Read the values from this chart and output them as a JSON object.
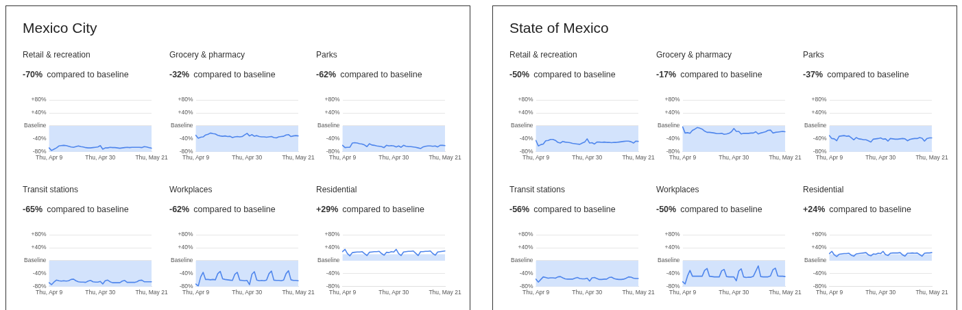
{
  "chart_data": [
    {
      "type": "other",
      "title": "Mexico City"
    },
    {
      "type": "line",
      "title": "Retail & recreation",
      "subtitle": "-70% compared to baseline",
      "categories": [
        "Thu, Apr 9",
        null,
        null,
        null,
        null,
        null,
        null,
        null,
        null,
        null,
        null,
        null,
        null,
        null,
        null,
        null,
        null,
        null,
        null,
        null,
        null,
        "Thu, Apr 30",
        null,
        null,
        null,
        null,
        null,
        null,
        null,
        null,
        null,
        null,
        null,
        null,
        null,
        null,
        null,
        null,
        null,
        null,
        null,
        null,
        "Thu, May 21"
      ],
      "series": [
        {
          "color": "#4f86ec",
          "values": [
            -68,
            -76,
            -72,
            -68,
            -62,
            -61,
            -60,
            -61,
            -63,
            -65,
            -66,
            -64,
            -62,
            -64,
            -65,
            -67,
            -68,
            -68,
            -67,
            -66,
            -65,
            -61,
            -72,
            -68,
            -68,
            -66,
            -67,
            -67,
            -68,
            -69,
            -68,
            -67,
            -66,
            -67,
            -66,
            -66,
            -66,
            -66,
            -67,
            -64,
            -65,
            -67,
            -69
          ]
        }
      ],
      "ylim": [
        -80,
        80
      ],
      "yticks": [
        {
          "value": 80,
          "label": "+80%"
        },
        {
          "value": 40,
          "label": "+40%"
        },
        {
          "value": 0,
          "label": "Baseline"
        },
        {
          "value": -40,
          "label": "-40%"
        },
        {
          "value": -80,
          "label": "-80%"
        }
      ],
      "bands": [
        {
          "axis": "y",
          "from": 0,
          "to": -80,
          "color": "#d3e3fc"
        }
      ],
      "grid": "y",
      "marker": "none",
      "line_style": "solid"
    },
    {
      "type": "line",
      "title": "Grocery & pharmacy",
      "subtitle": "-32% compared to baseline",
      "categories": [
        "Thu, Apr 9",
        null,
        null,
        null,
        null,
        null,
        null,
        null,
        null,
        null,
        null,
        null,
        null,
        null,
        null,
        null,
        null,
        null,
        null,
        null,
        null,
        "Thu, Apr 30",
        null,
        null,
        null,
        null,
        null,
        null,
        null,
        null,
        null,
        null,
        null,
        null,
        null,
        null,
        null,
        null,
        null,
        null,
        null,
        null,
        "Thu, May 21"
      ],
      "series": [
        {
          "color": "#4f86ec",
          "values": [
            -29,
            -38,
            -35,
            -34,
            -28,
            -26,
            -22,
            -24,
            -25,
            -29,
            -31,
            -32,
            -31,
            -33,
            -32,
            -36,
            -34,
            -33,
            -34,
            -33,
            -28,
            -23,
            -31,
            -27,
            -32,
            -30,
            -33,
            -34,
            -34,
            -35,
            -34,
            -33,
            -36,
            -37,
            -34,
            -33,
            -32,
            -28,
            -27,
            -33,
            -31,
            -30,
            -31
          ]
        }
      ],
      "ylim": [
        -80,
        80
      ],
      "yticks": [
        {
          "value": 80,
          "label": "+80%"
        },
        {
          "value": 40,
          "label": "+40%"
        },
        {
          "value": 0,
          "label": "Baseline"
        },
        {
          "value": -40,
          "label": "-40%"
        },
        {
          "value": -80,
          "label": "-80%"
        }
      ],
      "bands": [
        {
          "axis": "y",
          "from": 0,
          "to": -80,
          "color": "#d3e3fc"
        }
      ],
      "grid": "y",
      "marker": "none",
      "line_style": "solid"
    },
    {
      "type": "line",
      "title": "Parks",
      "subtitle": "-62% compared to baseline",
      "categories": [
        "Thu, Apr 9",
        null,
        null,
        null,
        null,
        null,
        null,
        null,
        null,
        null,
        null,
        null,
        null,
        null,
        null,
        null,
        null,
        null,
        null,
        null,
        null,
        "Thu, Apr 30",
        null,
        null,
        null,
        null,
        null,
        null,
        null,
        null,
        null,
        null,
        null,
        null,
        null,
        null,
        null,
        null,
        null,
        null,
        null,
        null,
        "Thu, May 21"
      ],
      "series": [
        {
          "color": "#4f86ec",
          "values": [
            -60,
            -67,
            -66,
            -66,
            -53,
            -52,
            -53,
            -55,
            -56,
            -59,
            -64,
            -55,
            -59,
            -60,
            -62,
            -63,
            -64,
            -67,
            -60,
            -62,
            -61,
            -62,
            -65,
            -62,
            -66,
            -60,
            -63,
            -64,
            -64,
            -65,
            -66,
            -68,
            -70,
            -65,
            -63,
            -62,
            -62,
            -63,
            -62,
            -65,
            -60,
            -60,
            -61
          ]
        }
      ],
      "ylim": [
        -80,
        80
      ],
      "yticks": [
        {
          "value": 80,
          "label": "+80%"
        },
        {
          "value": 40,
          "label": "+40%"
        },
        {
          "value": 0,
          "label": "Baseline"
        },
        {
          "value": -40,
          "label": "-40%"
        },
        {
          "value": -80,
          "label": "-80%"
        }
      ],
      "bands": [
        {
          "axis": "y",
          "from": 0,
          "to": -80,
          "color": "#d3e3fc"
        }
      ],
      "grid": "y",
      "marker": "none",
      "line_style": "solid"
    },
    {
      "type": "line",
      "title": "Transit stations",
      "subtitle": "-65% compared to baseline",
      "categories": [
        "Thu, Apr 9",
        null,
        null,
        null,
        null,
        null,
        null,
        null,
        null,
        null,
        null,
        null,
        null,
        null,
        null,
        null,
        null,
        null,
        null,
        null,
        null,
        "Thu, Apr 30",
        null,
        null,
        null,
        null,
        null,
        null,
        null,
        null,
        null,
        null,
        null,
        null,
        null,
        null,
        null,
        null,
        null,
        null,
        null,
        null,
        "Thu, May 21"
      ],
      "series": [
        {
          "color": "#4f86ec",
          "values": [
            -68,
            -74,
            -66,
            -60,
            -62,
            -63,
            -62,
            -63,
            -62,
            -58,
            -57,
            -62,
            -65,
            -66,
            -66,
            -67,
            -63,
            -61,
            -65,
            -66,
            -66,
            -64,
            -72,
            -62,
            -60,
            -65,
            -68,
            -68,
            -68,
            -68,
            -63,
            -61,
            -67,
            -67,
            -67,
            -67,
            -65,
            -61,
            -60,
            -65,
            -65,
            -65,
            -65
          ]
        }
      ],
      "ylim": [
        -80,
        80
      ],
      "yticks": [
        {
          "value": 80,
          "label": "+80%"
        },
        {
          "value": 40,
          "label": "+40%"
        },
        {
          "value": 0,
          "label": "Baseline"
        },
        {
          "value": -40,
          "label": "-40%"
        },
        {
          "value": -80,
          "label": "-80%"
        }
      ],
      "bands": [
        {
          "axis": "y",
          "from": 0,
          "to": -80,
          "color": "#d3e3fc"
        }
      ],
      "grid": "y",
      "marker": "none",
      "line_style": "solid"
    },
    {
      "type": "line",
      "title": "Workplaces",
      "subtitle": "-62% compared to baseline",
      "categories": [
        "Thu, Apr 9",
        null,
        null,
        null,
        null,
        null,
        null,
        null,
        null,
        null,
        null,
        null,
        null,
        null,
        null,
        null,
        null,
        null,
        null,
        null,
        null,
        "Thu, Apr 30",
        null,
        null,
        null,
        null,
        null,
        null,
        null,
        null,
        null,
        null,
        null,
        null,
        null,
        null,
        null,
        null,
        null,
        null,
        null,
        null,
        "Thu, May 21"
      ],
      "series": [
        {
          "color": "#4f86ec",
          "values": [
            -72,
            -78,
            -50,
            -36,
            -58,
            -58,
            -59,
            -58,
            -59,
            -40,
            -33,
            -56,
            -58,
            -59,
            -60,
            -61,
            -42,
            -36,
            -60,
            -61,
            -62,
            -61,
            -74,
            -42,
            -34,
            -60,
            -62,
            -61,
            -62,
            -60,
            -40,
            -32,
            -60,
            -61,
            -61,
            -62,
            -60,
            -40,
            -31,
            -59,
            -61,
            -61,
            -62
          ]
        }
      ],
      "ylim": [
        -80,
        80
      ],
      "yticks": [
        {
          "value": 80,
          "label": "+80%"
        },
        {
          "value": 40,
          "label": "+40%"
        },
        {
          "value": 0,
          "label": "Baseline"
        },
        {
          "value": -40,
          "label": "-40%"
        },
        {
          "value": -80,
          "label": "-80%"
        }
      ],
      "bands": [
        {
          "axis": "y",
          "from": 0,
          "to": -80,
          "color": "#d3e3fc"
        }
      ],
      "grid": "y",
      "marker": "none",
      "line_style": "solid"
    },
    {
      "type": "line",
      "title": "Residential",
      "subtitle": "+29% compared to baseline",
      "categories": [
        "Thu, Apr 9",
        null,
        null,
        null,
        null,
        null,
        null,
        null,
        null,
        null,
        null,
        null,
        null,
        null,
        null,
        null,
        null,
        null,
        null,
        null,
        null,
        "Thu, Apr 30",
        null,
        null,
        null,
        null,
        null,
        null,
        null,
        null,
        null,
        null,
        null,
        null,
        null,
        null,
        null,
        null,
        null,
        null,
        null,
        null,
        "Thu, May 21"
      ],
      "series": [
        {
          "color": "#4f86ec",
          "values": [
            28,
            35,
            22,
            15,
            25,
            26,
            27,
            27,
            28,
            22,
            16,
            26,
            27,
            28,
            28,
            29,
            22,
            17,
            26,
            25,
            28,
            27,
            35,
            22,
            16,
            27,
            28,
            29,
            29,
            30,
            23,
            16,
            28,
            28,
            29,
            29,
            30,
            22,
            17,
            27,
            28,
            29,
            30
          ]
        }
      ],
      "ylim": [
        -80,
        80
      ],
      "yticks": [
        {
          "value": 80,
          "label": "+80%"
        },
        {
          "value": 40,
          "label": "+40%"
        },
        {
          "value": 0,
          "label": "Baseline"
        },
        {
          "value": -40,
          "label": "-40%"
        },
        {
          "value": -80,
          "label": "-80%"
        }
      ],
      "bands": [
        {
          "axis": "y",
          "from": 0,
          "to": 20,
          "color": "#d3e3fc"
        }
      ],
      "grid": "y",
      "marker": "none",
      "line_style": "solid"
    },
    {
      "type": "other",
      "title": "State of Mexico"
    },
    {
      "type": "line",
      "title": "Retail & recreation",
      "subtitle": "-50% compared to baseline",
      "categories": [
        "Thu, Apr 9",
        null,
        null,
        null,
        null,
        null,
        null,
        null,
        null,
        null,
        null,
        null,
        null,
        null,
        null,
        null,
        null,
        null,
        null,
        null,
        null,
        "Thu, Apr 30",
        null,
        null,
        null,
        null,
        null,
        null,
        null,
        null,
        null,
        null,
        null,
        null,
        null,
        null,
        null,
        null,
        null,
        null,
        null,
        null,
        "Thu, May 21"
      ],
      "series": [
        {
          "color": "#4f86ec",
          "values": [
            -45,
            -62,
            -58,
            -56,
            -46,
            -45,
            -42,
            -42,
            -45,
            -51,
            -53,
            -48,
            -50,
            -51,
            -52,
            -54,
            -55,
            -56,
            -57,
            -53,
            -50,
            -40,
            -53,
            -52,
            -56,
            -50,
            -50,
            -51,
            -50,
            -51,
            -51,
            -52,
            -51,
            -51,
            -50,
            -49,
            -48,
            -47,
            -47,
            -49,
            -53,
            -47,
            -48
          ]
        }
      ],
      "ylim": [
        -80,
        80
      ],
      "yticks": [
        {
          "value": 80,
          "label": "+80%"
        },
        {
          "value": 40,
          "label": "+40%"
        },
        {
          "value": 0,
          "label": "Baseline"
        },
        {
          "value": -40,
          "label": "-40%"
        },
        {
          "value": -80,
          "label": "-80%"
        }
      ],
      "bands": [
        {
          "axis": "y",
          "from": 0,
          "to": -80,
          "color": "#d3e3fc"
        }
      ],
      "grid": "y",
      "marker": "none",
      "line_style": "solid"
    },
    {
      "type": "line",
      "title": "Grocery & pharmacy",
      "subtitle": "-17% compared to baseline",
      "categories": [
        "Thu, Apr 9",
        null,
        null,
        null,
        null,
        null,
        null,
        null,
        null,
        null,
        null,
        null,
        null,
        null,
        null,
        null,
        null,
        null,
        null,
        null,
        null,
        "Thu, Apr 30",
        null,
        null,
        null,
        null,
        null,
        null,
        null,
        null,
        null,
        null,
        null,
        null,
        null,
        null,
        null,
        null,
        null,
        null,
        null,
        null,
        "Thu, May 21"
      ],
      "series": [
        {
          "color": "#4f86ec",
          "values": [
            -3,
            -22,
            -21,
            -23,
            -14,
            -10,
            -5,
            -7,
            -10,
            -16,
            -20,
            -20,
            -21,
            -22,
            -24,
            -24,
            -23,
            -26,
            -25,
            -23,
            -18,
            -8,
            -17,
            -17,
            -25,
            -23,
            -23,
            -23,
            -22,
            -22,
            -18,
            -25,
            -22,
            -20,
            -18,
            -14,
            -13,
            -22,
            -20,
            -19,
            -18,
            -17,
            -18
          ]
        }
      ],
      "ylim": [
        -80,
        80
      ],
      "yticks": [
        {
          "value": 80,
          "label": "+80%"
        },
        {
          "value": 40,
          "label": "+40%"
        },
        {
          "value": 0,
          "label": "Baseline"
        },
        {
          "value": -40,
          "label": "-40%"
        },
        {
          "value": -80,
          "label": "-80%"
        }
      ],
      "bands": [
        {
          "axis": "y",
          "from": 0,
          "to": -80,
          "color": "#d3e3fc"
        }
      ],
      "grid": "y",
      "marker": "none",
      "line_style": "solid"
    },
    {
      "type": "line",
      "title": "Parks",
      "subtitle": "-37% compared to baseline",
      "categories": [
        "Thu, Apr 9",
        null,
        null,
        null,
        null,
        null,
        null,
        null,
        null,
        null,
        null,
        null,
        null,
        null,
        null,
        null,
        null,
        null,
        null,
        null,
        null,
        "Thu, Apr 30",
        null,
        null,
        null,
        null,
        null,
        null,
        null,
        null,
        null,
        null,
        null,
        null,
        null,
        null,
        null,
        null,
        null,
        null,
        null,
        null,
        "Thu, May 21"
      ],
      "series": [
        {
          "color": "#4f86ec",
          "values": [
            -30,
            -39,
            -40,
            -46,
            -32,
            -31,
            -30,
            -32,
            -31,
            -37,
            -43,
            -36,
            -40,
            -41,
            -43,
            -43,
            -46,
            -50,
            -41,
            -40,
            -39,
            -37,
            -41,
            -40,
            -47,
            -39,
            -40,
            -41,
            -41,
            -40,
            -39,
            -40,
            -46,
            -42,
            -40,
            -39,
            -39,
            -36,
            -38,
            -47,
            -39,
            -37,
            -37
          ]
        }
      ],
      "ylim": [
        -80,
        80
      ],
      "yticks": [
        {
          "value": 80,
          "label": "+80%"
        },
        {
          "value": 40,
          "label": "+40%"
        },
        {
          "value": 0,
          "label": "Baseline"
        },
        {
          "value": -40,
          "label": "-40%"
        },
        {
          "value": -80,
          "label": "-80%"
        }
      ],
      "bands": [
        {
          "axis": "y",
          "from": 0,
          "to": -80,
          "color": "#d3e3fc"
        }
      ],
      "grid": "y",
      "marker": "none",
      "line_style": "solid"
    },
    {
      "type": "line",
      "title": "Transit stations",
      "subtitle": "-56% compared to baseline",
      "categories": [
        "Thu, Apr 9",
        null,
        null,
        null,
        null,
        null,
        null,
        null,
        null,
        null,
        null,
        null,
        null,
        null,
        null,
        null,
        null,
        null,
        null,
        null,
        null,
        "Thu, Apr 30",
        null,
        null,
        null,
        null,
        null,
        null,
        null,
        null,
        null,
        null,
        null,
        null,
        null,
        null,
        null,
        null,
        null,
        null,
        null,
        null,
        "Thu, May 21"
      ],
      "series": [
        {
          "color": "#4f86ec",
          "values": [
            -57,
            -66,
            -58,
            -50,
            -52,
            -54,
            -53,
            -53,
            -54,
            -50,
            -49,
            -53,
            -56,
            -57,
            -57,
            -57,
            -54,
            -52,
            -55,
            -56,
            -56,
            -54,
            -63,
            -53,
            -52,
            -55,
            -58,
            -58,
            -57,
            -57,
            -52,
            -51,
            -55,
            -57,
            -58,
            -58,
            -57,
            -54,
            -50,
            -51,
            -54,
            -55,
            -55
          ]
        }
      ],
      "ylim": [
        -80,
        80
      ],
      "yticks": [
        {
          "value": 80,
          "label": "+80%"
        },
        {
          "value": 40,
          "label": "+40%"
        },
        {
          "value": 0,
          "label": "Baseline"
        },
        {
          "value": -40,
          "label": "-40%"
        },
        {
          "value": -80,
          "label": "-80%"
        }
      ],
      "bands": [
        {
          "axis": "y",
          "from": 0,
          "to": -80,
          "color": "#d3e3fc"
        }
      ],
      "grid": "y",
      "marker": "none",
      "line_style": "solid"
    },
    {
      "type": "line",
      "title": "Workplaces",
      "subtitle": "-50% compared to baseline",
      "categories": [
        "Thu, Apr 9",
        null,
        null,
        null,
        null,
        null,
        null,
        null,
        null,
        null,
        null,
        null,
        null,
        null,
        null,
        null,
        null,
        null,
        null,
        null,
        null,
        "Thu, Apr 30",
        null,
        null,
        null,
        null,
        null,
        null,
        null,
        null,
        null,
        null,
        null,
        null,
        null,
        null,
        null,
        null,
        null,
        null,
        null,
        null,
        "Thu, May 21"
      ],
      "series": [
        {
          "color": "#4f86ec",
          "values": [
            -65,
            -72,
            -47,
            -30,
            -48,
            -48,
            -48,
            -48,
            -48,
            -30,
            -24,
            -48,
            -49,
            -50,
            -50,
            -50,
            -31,
            -27,
            -49,
            -50,
            -50,
            -50,
            -62,
            -32,
            -25,
            -50,
            -52,
            -51,
            -51,
            -48,
            -32,
            -16,
            -49,
            -50,
            -50,
            -50,
            -47,
            -28,
            -23,
            -47,
            -48,
            -48,
            -49
          ]
        }
      ],
      "ylim": [
        -80,
        80
      ],
      "yticks": [
        {
          "value": 80,
          "label": "+80%"
        },
        {
          "value": 40,
          "label": "+40%"
        },
        {
          "value": 0,
          "label": "Baseline"
        },
        {
          "value": -40,
          "label": "-40%"
        },
        {
          "value": -80,
          "label": "-80%"
        }
      ],
      "bands": [
        {
          "axis": "y",
          "from": 0,
          "to": -80,
          "color": "#d3e3fc"
        }
      ],
      "grid": "y",
      "marker": "none",
      "line_style": "solid"
    },
    {
      "type": "line",
      "title": "Residential",
      "subtitle": "+24% compared to baseline",
      "categories": [
        "Thu, Apr 9",
        null,
        null,
        null,
        null,
        null,
        null,
        null,
        null,
        null,
        null,
        null,
        null,
        null,
        null,
        null,
        null,
        null,
        null,
        null,
        null,
        "Thu, Apr 30",
        null,
        null,
        null,
        null,
        null,
        null,
        null,
        null,
        null,
        null,
        null,
        null,
        null,
        null,
        null,
        null,
        null,
        null,
        null,
        null,
        "Thu, May 21"
      ],
      "series": [
        {
          "color": "#4f86ec",
          "values": [
            22,
            29,
            18,
            13,
            20,
            21,
            22,
            22,
            23,
            17,
            14,
            21,
            22,
            23,
            24,
            25,
            18,
            15,
            21,
            20,
            23,
            22,
            29,
            19,
            16,
            23,
            24,
            24,
            24,
            25,
            18,
            14,
            23,
            23,
            24,
            23,
            24,
            19,
            14,
            23,
            24,
            24,
            25
          ]
        }
      ],
      "ylim": [
        -80,
        80
      ],
      "yticks": [
        {
          "value": 80,
          "label": "+80%"
        },
        {
          "value": 40,
          "label": "+40%"
        },
        {
          "value": 0,
          "label": "Baseline"
        },
        {
          "value": -40,
          "label": "-40%"
        },
        {
          "value": -80,
          "label": "-80%"
        }
      ],
      "bands": [
        {
          "axis": "y",
          "from": 0,
          "to": 20,
          "color": "#d3e3fc"
        }
      ],
      "grid": "y",
      "marker": "none",
      "line_style": "solid"
    }
  ]
}
